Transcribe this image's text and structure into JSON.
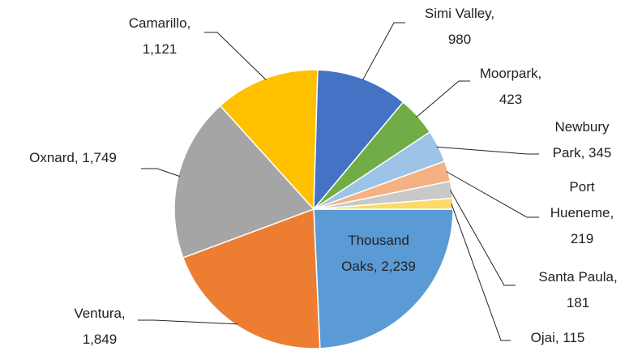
{
  "chart_data": {
    "type": "pie",
    "categories": [
      "Thousand Oaks",
      "Ventura",
      "Oxnard",
      "Camarillo",
      "Simi Valley",
      "Moorpark",
      "Newbury Park",
      "Port Hueneme",
      "Santa Paula",
      "Ojai"
    ],
    "values": [
      2239,
      1849,
      1749,
      1121,
      980,
      423,
      345,
      219,
      181,
      115
    ],
    "value_labels": [
      "Thousand Oaks, 2,239",
      "Ventura, 1,849",
      "Oxnard, 1,749",
      "Camarillo, 1,121",
      "Simi Valley, 980",
      "Moorpark, 423",
      "Newbury Park, 345",
      "Port Hueneme, 219",
      "Santa Paula, 181",
      "Ojai, 115"
    ],
    "colors": [
      "#5B9BD5",
      "#ED7D31",
      "#A5A5A5",
      "#FFC000",
      "#4472C4",
      "#70AD47",
      "#9DC3E6",
      "#F4B183",
      "#C9C9C9",
      "#FFD966"
    ]
  }
}
